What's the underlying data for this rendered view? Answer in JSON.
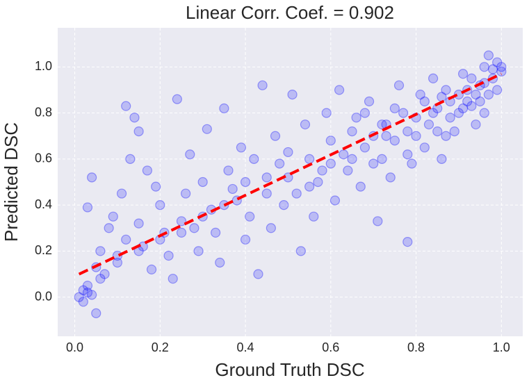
{
  "chart_data": {
    "type": "scatter",
    "title": "Linear Corr. Coef. = 0.902",
    "xlabel": "Ground Truth DSC",
    "ylabel": "Predicted DSC",
    "xlim": [
      -0.04,
      1.05
    ],
    "ylim": [
      -0.17,
      1.17
    ],
    "xticks": [
      {
        "value": 0,
        "label": "0.0"
      },
      0.2,
      0.4,
      0.6,
      0.8,
      {
        "value": 1,
        "label": "1.0"
      }
    ],
    "yticks": [
      {
        "value": 0,
        "label": "0.0"
      },
      0.2,
      0.4,
      0.6,
      0.8,
      {
        "value": 1,
        "label": "1.0"
      }
    ],
    "grid": true,
    "series": [
      {
        "color": "#0000ff",
        "x": [
          0.01,
          0.02,
          0.02,
          0.03,
          0.04,
          0.05,
          0.03,
          0.06,
          0.08,
          0.1,
          0.12,
          0.04,
          0.05,
          0.07,
          0.09,
          0.11,
          0.13,
          0.15,
          0.14,
          0.16,
          0.18,
          0.2,
          0.22,
          0.12,
          0.15,
          0.17,
          0.19,
          0.21,
          0.23,
          0.25,
          0.27,
          0.29,
          0.24,
          0.26,
          0.28,
          0.3,
          0.32,
          0.34,
          0.36,
          0.38,
          0.4,
          0.42,
          0.31,
          0.33,
          0.35,
          0.37,
          0.39,
          0.41,
          0.43,
          0.45,
          0.47,
          0.49,
          0.44,
          0.46,
          0.48,
          0.5,
          0.52,
          0.54,
          0.56,
          0.58,
          0.6,
          0.51,
          0.53,
          0.55,
          0.57,
          0.59,
          0.61,
          0.63,
          0.65,
          0.62,
          0.64,
          0.66,
          0.68,
          0.7,
          0.72,
          0.67,
          0.69,
          0.71,
          0.73,
          0.75,
          0.77,
          0.74,
          0.76,
          0.78,
          0.8,
          0.82,
          0.79,
          0.81,
          0.83,
          0.85,
          0.87,
          0.84,
          0.86,
          0.88,
          0.9,
          0.92,
          0.89,
          0.91,
          0.93,
          0.95,
          0.97,
          0.94,
          0.96,
          0.98,
          0.99,
          1.0,
          0.97,
          0.99,
          0.95,
          0.93,
          0.9,
          0.87,
          0.85,
          0.82,
          0.8,
          0.78,
          0.75,
          0.72,
          0.7,
          0.68,
          0.65,
          0.6,
          0.55,
          0.5,
          0.45,
          0.4,
          0.35,
          0.3,
          0.25,
          0.2,
          0.15,
          0.1,
          0.06,
          0.03,
          0.88,
          0.92,
          0.96,
          0.84,
          0.78,
          0.73,
          0.96,
          0.98,
          1.0,
          0.94,
          0.91,
          0.86
        ],
        "values": [
          0.0,
          0.03,
          -0.02,
          0.05,
          0.01,
          -0.07,
          0.39,
          0.2,
          0.3,
          0.18,
          0.25,
          0.52,
          0.13,
          0.1,
          0.35,
          0.45,
          0.6,
          0.32,
          0.78,
          0.22,
          0.12,
          0.4,
          0.18,
          0.83,
          0.72,
          0.55,
          0.48,
          0.28,
          0.08,
          0.33,
          0.62,
          0.2,
          0.86,
          0.45,
          0.3,
          0.5,
          0.38,
          0.15,
          0.55,
          0.42,
          0.25,
          0.6,
          0.73,
          0.28,
          0.82,
          0.47,
          0.65,
          0.35,
          0.1,
          0.52,
          0.7,
          0.4,
          0.92,
          0.3,
          0.58,
          0.63,
          0.45,
          0.75,
          0.35,
          0.55,
          0.68,
          0.88,
          0.2,
          0.6,
          0.5,
          0.8,
          0.42,
          0.62,
          0.72,
          0.9,
          0.55,
          0.78,
          0.65,
          0.7,
          0.6,
          0.48,
          0.85,
          0.33,
          0.75,
          0.68,
          0.8,
          0.52,
          0.92,
          0.72,
          0.78,
          0.65,
          0.58,
          0.88,
          0.75,
          0.82,
          0.7,
          0.95,
          0.6,
          0.85,
          0.8,
          0.9,
          0.72,
          0.97,
          0.83,
          0.92,
          0.88,
          0.75,
          1.0,
          0.95,
          0.9,
          0.98,
          1.05,
          1.02,
          0.85,
          0.95,
          0.88,
          0.9,
          0.72,
          0.85,
          0.7,
          0.62,
          0.82,
          0.75,
          0.58,
          0.8,
          0.6,
          0.58,
          0.48,
          0.52,
          0.45,
          0.5,
          0.4,
          0.35,
          0.28,
          0.25,
          0.2,
          0.15,
          0.08,
          0.02,
          0.78,
          0.85,
          0.93,
          0.8,
          0.24,
          0.7,
          0.8,
          0.99,
          1.0,
          0.88,
          0.82,
          0.87
        ]
      }
    ],
    "fit_line": {
      "x": [
        0.01,
        1.0
      ],
      "values": [
        0.1,
        0.97
      ],
      "color": "#ff0000",
      "dashed": true
    }
  }
}
